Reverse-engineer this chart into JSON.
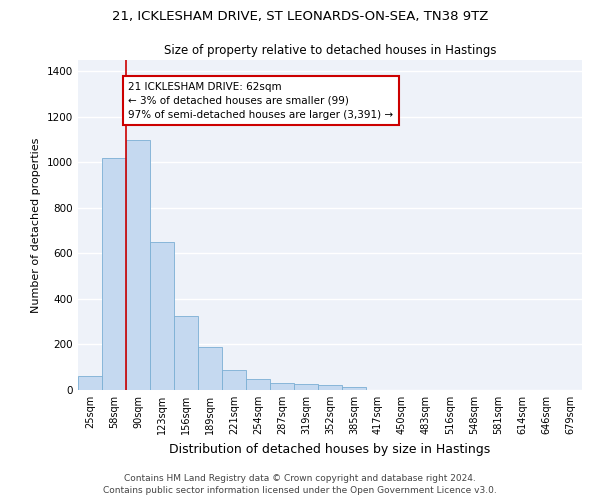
{
  "title1": "21, ICKLESHAM DRIVE, ST LEONARDS-ON-SEA, TN38 9TZ",
  "title2": "Size of property relative to detached houses in Hastings",
  "xlabel": "Distribution of detached houses by size in Hastings",
  "ylabel": "Number of detached properties",
  "categories": [
    "25sqm",
    "58sqm",
    "90sqm",
    "123sqm",
    "156sqm",
    "189sqm",
    "221sqm",
    "254sqm",
    "287sqm",
    "319sqm",
    "352sqm",
    "385sqm",
    "417sqm",
    "450sqm",
    "483sqm",
    "516sqm",
    "548sqm",
    "581sqm",
    "614sqm",
    "646sqm",
    "679sqm"
  ],
  "values": [
    62,
    1020,
    1100,
    650,
    325,
    190,
    90,
    48,
    30,
    25,
    22,
    15,
    0,
    0,
    0,
    0,
    0,
    0,
    0,
    0,
    0
  ],
  "bar_color": "#c5d9f0",
  "bar_edge_color": "#7bafd4",
  "vline_color": "#cc0000",
  "vline_x": 1.5,
  "annotation_text": "21 ICKLESHAM DRIVE: 62sqm\n← 3% of detached houses are smaller (99)\n97% of semi-detached houses are larger (3,391) →",
  "annotation_box_color": "#ffffff",
  "annotation_box_edge": "#cc0000",
  "ylim": [
    0,
    1450
  ],
  "yticks": [
    0,
    200,
    400,
    600,
    800,
    1000,
    1200,
    1400
  ],
  "bg_color": "#eef2f9",
  "grid_color": "#ffffff",
  "footer_line1": "Contains HM Land Registry data © Crown copyright and database right 2024.",
  "footer_line2": "Contains public sector information licensed under the Open Government Licence v3.0.",
  "title_fontsize": 9.5,
  "subtitle_fontsize": 8.5,
  "ylabel_fontsize": 8,
  "xlabel_fontsize": 9,
  "tick_fontsize": 7,
  "annot_fontsize": 7.5,
  "footer_fontsize": 6.5
}
